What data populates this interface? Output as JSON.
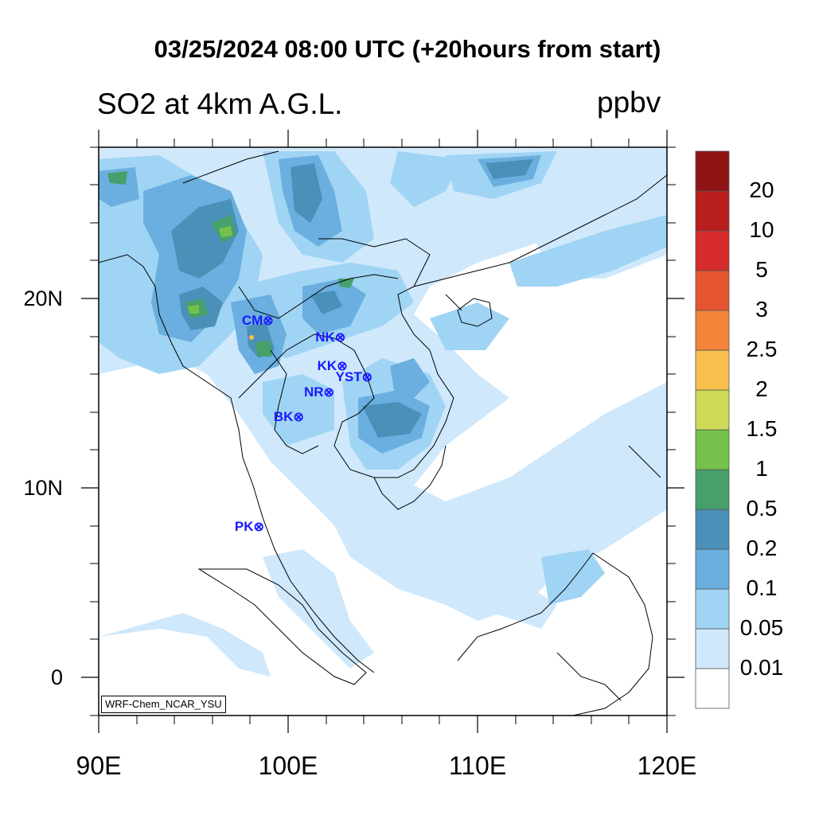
{
  "title": "03/25/2024 08:00 UTC (+20hours from start)",
  "variable": "SO2 at 4km A.G.L.",
  "units": "ppbv",
  "source": "WRF-Chem_NCAR_YSU",
  "x_axis": {
    "ticks": [
      "90E",
      "100E",
      "110E",
      "120E"
    ],
    "range_deg": [
      90,
      120
    ]
  },
  "y_axis": {
    "ticks": [
      "0",
      "10N",
      "20N"
    ],
    "range_deg": [
      -2,
      28
    ]
  },
  "colorbar": {
    "levels": [
      "0.01",
      "0.05",
      "0.1",
      "0.2",
      "0.5",
      "1",
      "1.5",
      "2",
      "2.5",
      "3",
      "5",
      "10",
      "20"
    ],
    "colors": [
      "#ffffff",
      "#cfe8fb",
      "#a0d4f4",
      "#6aafdf",
      "#4a90b8",
      "#46a06c",
      "#74c14b",
      "#cfdb58",
      "#f8c04c",
      "#f4843a",
      "#e45530",
      "#d62c2c",
      "#b81e1e",
      "#8e1414"
    ]
  },
  "stations": [
    {
      "code": "CM",
      "lon": 98.9,
      "lat": 18.8
    },
    {
      "code": "NK",
      "lon": 102.7,
      "lat": 17.9
    },
    {
      "code": "KK",
      "lon": 102.8,
      "lat": 16.4
    },
    {
      "code": "YST",
      "lon": 104.1,
      "lat": 15.8
    },
    {
      "code": "NR",
      "lon": 102.1,
      "lat": 15.0
    },
    {
      "code": "BK",
      "lon": 100.5,
      "lat": 13.7
    },
    {
      "code": "PK",
      "lon": 98.4,
      "lat": 7.9
    }
  ]
}
